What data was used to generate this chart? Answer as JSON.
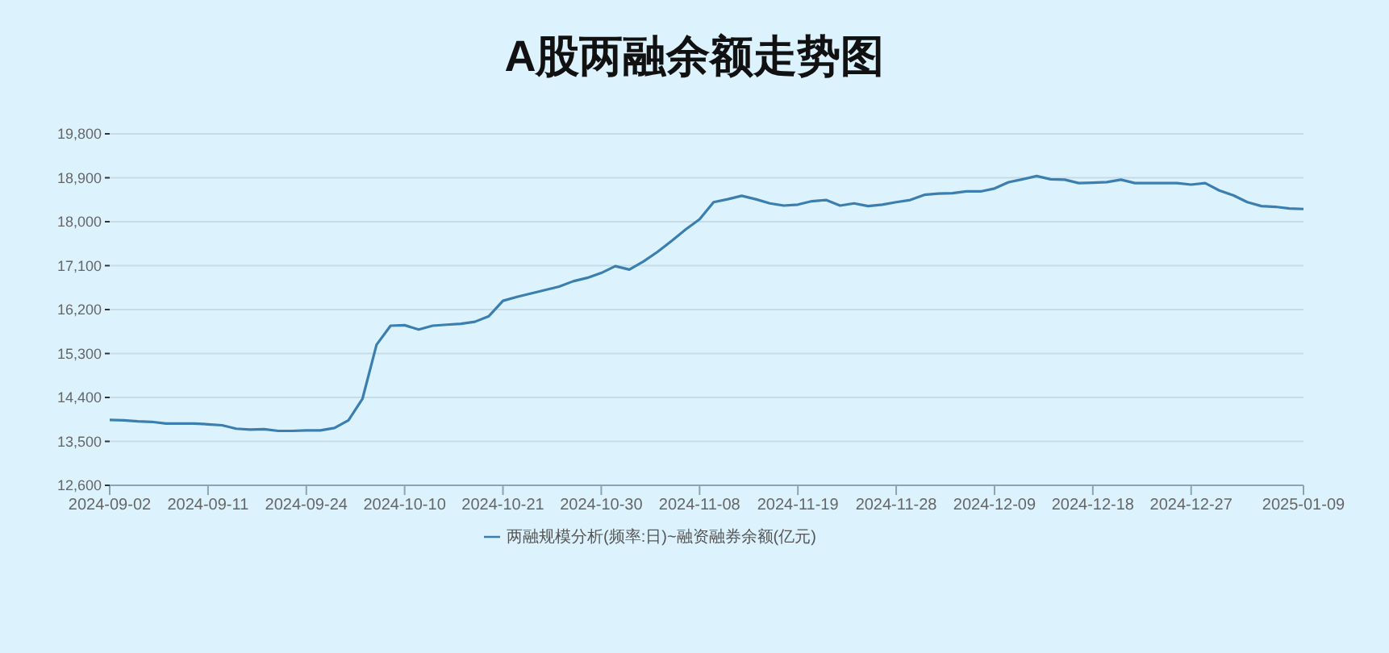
{
  "chart_data": {
    "type": "line",
    "title": "A股两融余额走势图",
    "categories": [
      "2024-09-02",
      null,
      null,
      null,
      null,
      null,
      null,
      "2024-09-11",
      null,
      null,
      null,
      null,
      null,
      null,
      "2024-09-24",
      null,
      null,
      null,
      null,
      null,
      null,
      "2024-10-10",
      null,
      null,
      null,
      null,
      null,
      null,
      "2024-10-21",
      null,
      null,
      null,
      null,
      null,
      null,
      "2024-10-30",
      null,
      null,
      null,
      null,
      null,
      null,
      "2024-11-08",
      null,
      null,
      null,
      null,
      null,
      null,
      "2024-11-19",
      null,
      null,
      null,
      null,
      null,
      null,
      "2024-11-28",
      null,
      null,
      null,
      null,
      null,
      null,
      "2024-12-09",
      null,
      null,
      null,
      null,
      null,
      null,
      "2024-12-18",
      null,
      null,
      null,
      null,
      null,
      null,
      "2024-12-27",
      null,
      null,
      null,
      null,
      null,
      null,
      null,
      "2025-01-09"
    ],
    "series": [
      {
        "name": "两融规模分析(频率:日)~融资融券余额(亿元)",
        "color": "#3a7fb0",
        "values": [
          13940,
          13930,
          13910,
          13900,
          13865,
          13865,
          13865,
          13850,
          13830,
          13760,
          13740,
          13750,
          13715,
          13715,
          13725,
          13725,
          13775,
          13930,
          14375,
          15480,
          15870,
          15880,
          15790,
          15870,
          15890,
          15910,
          15950,
          16065,
          16380,
          16460,
          16530,
          16600,
          16670,
          16780,
          16850,
          16950,
          17090,
          17020,
          17185,
          17380,
          17605,
          17840,
          18050,
          18400,
          18460,
          18530,
          18460,
          18375,
          18330,
          18350,
          18420,
          18445,
          18330,
          18375,
          18320,
          18350,
          18400,
          18445,
          18550,
          18575,
          18585,
          18620,
          18620,
          18680,
          18810,
          18870,
          18935,
          18870,
          18860,
          18790,
          18800,
          18810,
          18860,
          18790,
          18790,
          18790,
          18790,
          18760,
          18790,
          18640,
          18540,
          18400,
          18320,
          18305,
          18270,
          18260
        ]
      }
    ],
    "ylim": [
      12600,
      19800
    ],
    "yticks": [
      {
        "value": 12600,
        "label": "12,600"
      },
      {
        "value": 13500,
        "label": "13,500"
      },
      {
        "value": 14400,
        "label": "14,400"
      },
      {
        "value": 15300,
        "label": "15,300"
      },
      {
        "value": 16200,
        "label": "16,200"
      },
      {
        "value": 17100,
        "label": "17,100"
      },
      {
        "value": 18000,
        "label": "18,000"
      },
      {
        "value": 18900,
        "label": "18,900"
      },
      {
        "value": 19800,
        "label": "19,800"
      }
    ],
    "grid": "y",
    "legend": "bottom",
    "marker": "none",
    "line_style": "solid"
  }
}
